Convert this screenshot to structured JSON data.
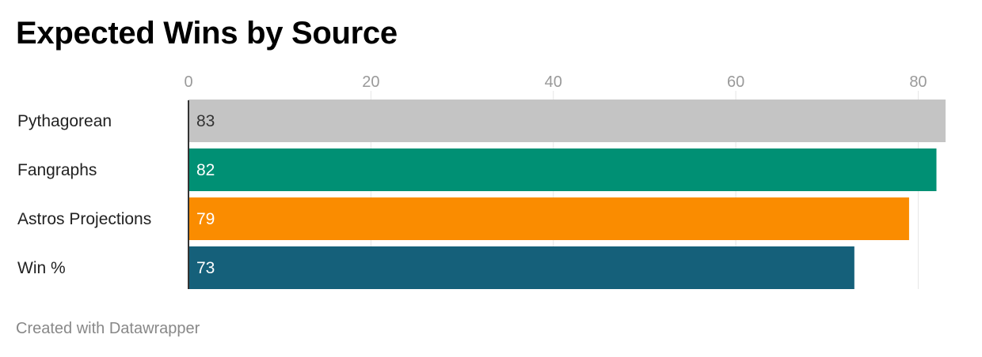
{
  "chart_data": {
    "type": "bar",
    "orientation": "horizontal",
    "title": "Expected Wins by Source",
    "categories": [
      "Pythagorean",
      "Fangraphs",
      "Astros Projections",
      "Win %"
    ],
    "values": [
      83,
      82,
      79,
      73
    ],
    "value_labels": [
      "83",
      "82",
      "79",
      "73"
    ],
    "colors": [
      "#c4c4c4",
      "#009074",
      "#fa8c00",
      "#15607a"
    ],
    "label_colors": [
      "#333333",
      "#ffffff",
      "#ffffff",
      "#ffffff"
    ],
    "xticks": [
      0,
      20,
      40,
      60,
      80
    ],
    "xlim": [
      0,
      83
    ],
    "grid": true,
    "axis_position": "top"
  },
  "colors": {
    "grid": "#e6e6e6",
    "tick_label": "#9a9a9a",
    "axis_line": "#333333",
    "category_label": "#222222"
  },
  "footer": {
    "credit": "Created with Datawrapper"
  }
}
